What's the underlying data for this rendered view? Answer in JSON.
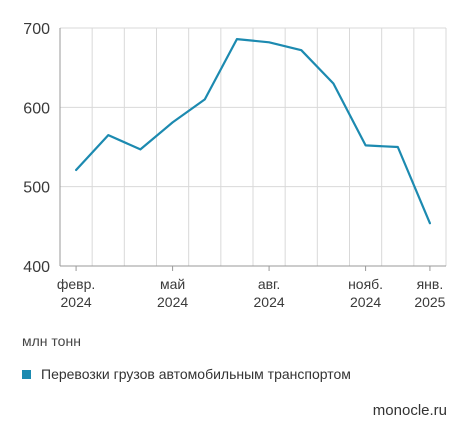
{
  "chart_data": {
    "type": "line",
    "x": [
      "2024-02",
      "2024-03",
      "2024-04",
      "2024-05",
      "2024-06",
      "2024-07",
      "2024-08",
      "2024-09",
      "2024-10",
      "2024-11",
      "2024-12",
      "2025-01"
    ],
    "series": [
      {
        "name": "Перевозки грузов автомобильным транспортом",
        "values": [
          521,
          565,
          547,
          581,
          610,
          686,
          682,
          672,
          630,
          552,
          550,
          454
        ],
        "color": "#1c8ab0"
      }
    ],
    "xticks": [
      {
        "x": "2024-02",
        "line1": "февр.",
        "line2": "2024"
      },
      {
        "x": "2024-05",
        "line1": "май",
        "line2": "2024"
      },
      {
        "x": "2024-08",
        "line1": "авг.",
        "line2": "2024"
      },
      {
        "x": "2024-11",
        "line1": "нояб.",
        "line2": "2024"
      },
      {
        "x": "2025-01",
        "line1": "янв.",
        "line2": "2025"
      }
    ],
    "yticks": [
      400,
      500,
      600,
      700
    ],
    "ylim": [
      400,
      700
    ],
    "ylabel": "млн тонн",
    "grid": true,
    "legend_position": "bottom-left"
  },
  "source": "monocle.ru",
  "colors": {
    "grid": "#d9d9d9",
    "axis": "#999999",
    "line": "#1c8ab0"
  }
}
